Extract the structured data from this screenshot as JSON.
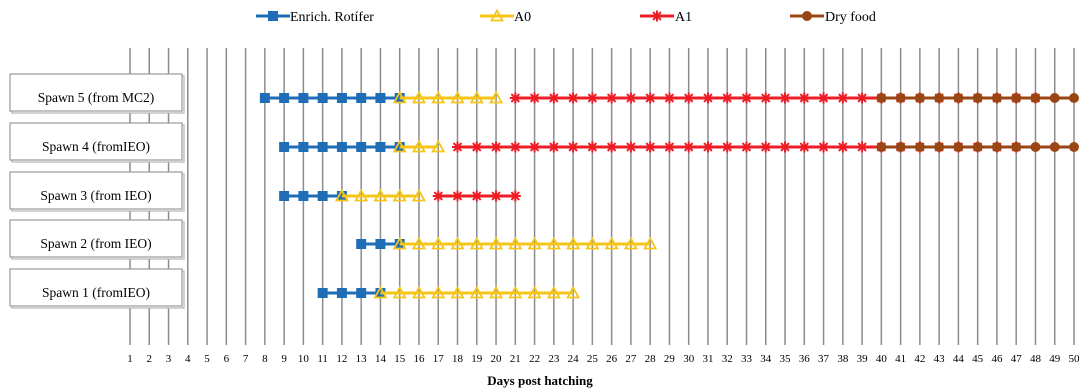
{
  "chart_data": {
    "type": "line",
    "xlabel": "Days post hatching",
    "xlim": [
      1,
      50
    ],
    "x_ticks": [
      1,
      2,
      3,
      4,
      5,
      6,
      7,
      8,
      9,
      10,
      11,
      12,
      13,
      14,
      15,
      16,
      17,
      18,
      19,
      20,
      21,
      22,
      23,
      24,
      25,
      26,
      27,
      28,
      29,
      30,
      31,
      32,
      33,
      34,
      35,
      36,
      37,
      38,
      39,
      40,
      41,
      42,
      43,
      44,
      45,
      46,
      47,
      48,
      49,
      50
    ],
    "grid": "vertical",
    "legend": "top",
    "legend_entries": [
      {
        "name": "Enrich. Rotífer",
        "color": "#1f6db7",
        "marker": "square"
      },
      {
        "name": "A0",
        "color": "#f5c518",
        "marker": "triangle"
      },
      {
        "name": "A1",
        "color": "#ee1c25",
        "marker": "asterisk"
      },
      {
        "name": "Dry food",
        "color": "#9a4614",
        "marker": "circle"
      }
    ],
    "categories": [
      "Spawn 5 (from MC2)",
      "Spawn 4 (fromIEO)",
      "Spawn 3 (from IEO)",
      "Spawn 2 (from IEO)",
      "Spawn 1 (fromIEO)"
    ],
    "rows": [
      {
        "label": "Spawn 5 (from MC2)",
        "series": [
          {
            "name": "Enrich. Rotífer",
            "start": 8,
            "end": 15
          },
          {
            "name": "A0",
            "start": 15,
            "end": 20
          },
          {
            "name": "A1",
            "start": 21,
            "end": 48
          },
          {
            "name": "Dry food",
            "start": 40,
            "end": 50
          }
        ]
      },
      {
        "label": "Spawn 4 (fromIEO)",
        "series": [
          {
            "name": "Enrich. Rotífer",
            "start": 9,
            "end": 15
          },
          {
            "name": "A0",
            "start": 15,
            "end": 17
          },
          {
            "name": "A1",
            "start": 18,
            "end": 47
          },
          {
            "name": "Dry food",
            "start": 40,
            "end": 50
          }
        ]
      },
      {
        "label": "Spawn 3 (from IEO)",
        "series": [
          {
            "name": "Enrich. Rotífer",
            "start": 9,
            "end": 12
          },
          {
            "name": "A0",
            "start": 12,
            "end": 16
          },
          {
            "name": "A1",
            "start": 17,
            "end": 21
          }
        ]
      },
      {
        "label": "Spawn 2 (from IEO)",
        "series": [
          {
            "name": "Enrich. Rotífer",
            "start": 13,
            "end": 15
          },
          {
            "name": "A0",
            "start": 15,
            "end": 28
          }
        ]
      },
      {
        "label": "Spawn 1 (fromIEO)",
        "series": [
          {
            "name": "Enrich. Rotífer",
            "start": 11,
            "end": 14
          },
          {
            "name": "A0",
            "start": 14,
            "end": 24
          }
        ]
      }
    ]
  }
}
